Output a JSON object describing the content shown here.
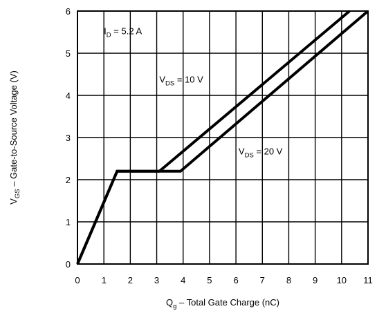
{
  "chart_data": {
    "type": "line",
    "xlabel": {
      "main": "Q",
      "sub": "g",
      "rest": " –  Total Gate Charge (nC)"
    },
    "ylabel": {
      "main": "V",
      "sub": "GS",
      "rest": " –  Gate-to-Source Voltage (V)"
    },
    "xlim": [
      0,
      11
    ],
    "ylim": [
      0,
      6
    ],
    "x_ticks": [
      "0",
      "1",
      "2",
      "3",
      "4",
      "5",
      "6",
      "7",
      "8",
      "9",
      "10",
      "11"
    ],
    "y_ticks": [
      "0",
      "1",
      "2",
      "3",
      "4",
      "5",
      "6"
    ],
    "grid": true,
    "series": [
      {
        "name": "V_DS = 10 V",
        "x": [
          0,
          1.5,
          3.1,
          10.3
        ],
        "y": [
          0,
          2.2,
          2.2,
          6
        ]
      },
      {
        "name": "V_DS = 20 V",
        "x": [
          0,
          1.5,
          3.9,
          11
        ],
        "y": [
          0,
          2.2,
          2.2,
          6
        ]
      }
    ],
    "annotations": [
      {
        "id": "id",
        "main": "I",
        "sub": "D",
        "rest": " = 5.2  A",
        "x": 1,
        "y": 5.45
      },
      {
        "id": "vds10",
        "main": "V",
        "sub": "DS",
        "rest": " = 10 V",
        "x": 3.1,
        "y": 4.3
      },
      {
        "id": "vds20",
        "main": "V",
        "sub": "DS",
        "rest": " = 20 V",
        "x": 6.1,
        "y": 2.6
      }
    ],
    "line_color": "#000000"
  }
}
